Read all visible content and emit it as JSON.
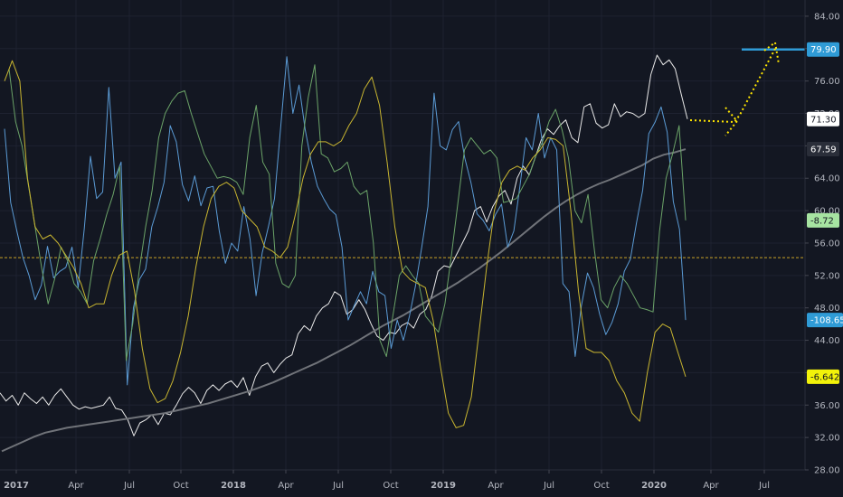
{
  "chart_data": {
    "type": "line",
    "title": "",
    "xlabel": "",
    "ylabel": "",
    "ylim": [
      28,
      86
    ],
    "grid": true,
    "background": "#131722",
    "x_ticks": [
      "2017",
      "Apr",
      "Jul",
      "Oct",
      "2018",
      "Apr",
      "Jul",
      "Oct",
      "2019",
      "Apr",
      "Jul",
      "Oct",
      "2020",
      "Apr",
      "Jul"
    ],
    "x_tick_years": [
      "2017",
      "2018",
      "2019",
      "2020"
    ],
    "y_ticks": [
      "28.00",
      "32.00",
      "36.00",
      "40.00",
      "44.00",
      "48.00",
      "52.00",
      "56.00",
      "60.00",
      "64.00",
      "68.00",
      "72.00",
      "76.00",
      "80.00",
      "84.00"
    ],
    "reference_line": {
      "value": 54.2,
      "color": "#c9a227"
    },
    "series": [
      {
        "color": "#e8e8e8",
        "values": [
          37.5,
          36.5,
          37.2,
          36.0,
          37.5,
          36.8,
          36.2,
          37.0,
          36.0,
          37.2,
          38.0,
          37.0,
          36.0,
          35.5,
          35.8,
          35.6,
          35.8,
          36.0,
          37.0,
          35.6,
          35.4,
          34.2,
          32.2,
          33.8,
          34.2,
          34.8,
          33.6,
          35.0,
          34.8,
          36.0,
          37.4,
          38.2,
          37.5,
          36.2,
          37.8,
          38.5,
          37.8,
          38.6,
          39.0,
          38.2,
          39.4,
          37.2,
          39.5,
          40.8,
          41.2,
          40.0,
          41.0,
          41.8,
          42.2,
          44.8,
          45.8,
          45.2,
          47.0,
          48.0,
          48.5,
          50.0,
          49.5,
          47.2,
          47.8,
          49.0,
          47.8,
          46.0,
          44.5,
          44.0,
          45.0,
          44.8,
          45.8,
          46.2,
          45.5,
          47.2,
          47.8,
          49.5,
          52.5,
          53.2,
          53.0,
          54.5,
          56.0,
          57.5,
          60.0,
          60.5,
          58.6,
          60.5,
          61.8,
          62.5,
          60.8,
          64.0,
          65.5,
          64.4,
          66.6,
          68.8,
          70.1,
          69.4,
          70.5,
          71.2,
          69.0,
          68.4,
          72.8,
          73.2,
          70.8,
          70.2,
          70.6,
          73.2,
          71.6,
          72.2,
          72.0,
          71.5,
          72.0,
          76.8,
          79.2,
          78.0,
          78.6,
          77.5,
          74.3,
          71.3
        ]
      },
      {
        "color": "#707379",
        "values": [
          30.3,
          30.9,
          31.5,
          32.1,
          32.6,
          32.9,
          33.2,
          33.4,
          33.6,
          33.8,
          34.0,
          34.2,
          34.4,
          34.6,
          34.8,
          35.0,
          35.3,
          35.6,
          35.9,
          36.2,
          36.6,
          37.0,
          37.4,
          37.8,
          38.3,
          38.8,
          39.4,
          40.0,
          40.6,
          41.2,
          41.9,
          42.6,
          43.3,
          44.1,
          44.9,
          45.7,
          46.4,
          47.1,
          47.9,
          48.7,
          49.5,
          50.3,
          51.1,
          52.0,
          52.9,
          53.9,
          54.9,
          56.0,
          57.1,
          58.2,
          59.3,
          60.3,
          61.2,
          62.0,
          62.7,
          63.3,
          63.8,
          64.4,
          65.0,
          65.6,
          66.4,
          66.9,
          67.2,
          67.59
        ]
      },
      {
        "color": "#5b9bd5",
        "values": [
          70.1,
          61.0,
          57.5,
          54.2,
          52.0,
          49.0,
          50.8,
          55.6,
          51.7,
          52.5,
          53.0,
          55.5,
          50.5,
          57.8,
          66.7,
          61.5,
          62.3,
          75.2,
          64.0,
          66.0,
          38.5,
          48.0,
          51.5,
          52.8,
          58.0,
          60.5,
          63.5,
          70.5,
          68.5,
          63.2,
          61.2,
          64.3,
          60.6,
          62.8,
          63.0,
          57.5,
          53.5,
          56.0,
          55.0,
          60.5,
          56.5,
          49.5,
          54.8,
          58.0,
          61.5,
          70.3,
          79.0,
          72.0,
          75.5,
          70.0,
          66.0,
          63.0,
          61.5,
          60.2,
          59.5,
          55.5,
          46.5,
          48.3,
          50.0,
          48.5,
          52.5,
          50.0,
          49.5,
          43.0,
          46.5,
          44.0,
          47.0,
          50.8,
          55.5,
          60.5,
          74.5,
          68.0,
          67.5,
          70.0,
          71.0,
          66.5,
          63.5,
          59.6,
          58.8,
          57.5,
          59.5,
          60.8,
          55.5,
          57.5,
          63.0,
          69.0,
          67.5,
          72.0,
          66.5,
          69.0,
          67.5,
          51.0,
          50.0,
          42.0,
          48.2,
          52.3,
          50.5,
          47.2,
          44.7,
          46.2,
          48.5,
          52.5,
          54.0,
          58.5,
          62.5,
          69.5,
          70.9,
          72.8,
          69.7,
          61.1,
          57.7,
          46.5
        ]
      },
      {
        "color": "#6ba368",
        "values": [
          77.5,
          71.0,
          68.0,
          63.0,
          58.0,
          53.0,
          48.5,
          51.5,
          55.5,
          53.8,
          51.0,
          50.0,
          48.5,
          53.8,
          56.5,
          59.5,
          62.0,
          65.5,
          41.5,
          46.0,
          52.5,
          58.0,
          62.5,
          69.0,
          72.0,
          73.5,
          74.5,
          74.8,
          72.0,
          69.5,
          67.0,
          65.5,
          64.0,
          64.2,
          64.0,
          63.5,
          62.0,
          69.0,
          73.0,
          66.0,
          64.5,
          53.5,
          51.0,
          50.5,
          52.0,
          68.0,
          74.0,
          78.0,
          67.0,
          66.5,
          64.8,
          65.2,
          66.0,
          63.0,
          62.0,
          62.5,
          56.0,
          44.0,
          42.0,
          47.0,
          52.0,
          53.2,
          52.0,
          51.0,
          47.0,
          46.0,
          45.0,
          48.5,
          54.5,
          61.0,
          67.5,
          69.0,
          68.0,
          67.0,
          67.5,
          66.5,
          61.0,
          61.2,
          61.5,
          63.0,
          64.5,
          66.8,
          68.5,
          71.0,
          72.5,
          70.0,
          66.5,
          60.0,
          58.5,
          62.0,
          55.0,
          49.0,
          48.0,
          50.5,
          52.0,
          51.0,
          49.5,
          48.0,
          47.8,
          47.5,
          57.5,
          64.0,
          67.0,
          70.5,
          58.8
        ]
      },
      {
        "color": "#c8b530",
        "values": [
          76.0,
          78.5,
          76.0,
          64.0,
          58.0,
          56.5,
          57.0,
          56.0,
          54.5,
          53.0,
          51.0,
          48.0,
          48.5,
          48.5,
          52.0,
          54.5,
          55.0,
          50.0,
          43.0,
          38.0,
          36.3,
          36.8,
          39.0,
          42.5,
          47.0,
          53.0,
          58.0,
          61.5,
          63.0,
          63.5,
          62.8,
          60.0,
          59.0,
          58.0,
          55.5,
          55.0,
          54.2,
          55.5,
          59.5,
          64.0,
          67.0,
          68.5,
          68.5,
          68.0,
          68.6,
          70.5,
          72.0,
          75.0,
          76.5,
          73.0,
          66.0,
          58.0,
          52.5,
          51.5,
          51.0,
          50.5,
          46.5,
          40.5,
          35.0,
          33.2,
          33.5,
          37.0,
          45.0,
          53.0,
          60.0,
          63.5,
          65.0,
          65.5,
          65.0,
          66.5,
          67.5,
          69.0,
          68.8,
          68.0,
          60.0,
          50.0,
          43.0,
          42.5,
          42.5,
          41.5,
          39.0,
          37.5,
          35.0,
          34.0,
          40.0,
          45.0,
          46.0,
          45.5,
          42.5,
          39.5
        ]
      }
    ],
    "price_tags": [
      {
        "label": "79.90",
        "value": 79.9,
        "bg": "#2f9bd6",
        "fg": "#ffffff"
      },
      {
        "label": "71.30",
        "value": 71.3,
        "bg": "#ffffff",
        "fg": "#131722"
      },
      {
        "label": "67.59",
        "value": 67.59,
        "bg": "#2a2e39",
        "fg": "#ffffff"
      },
      {
        "label": "-8.72",
        "value": 58.8,
        "bg": "#a6e3a1",
        "fg": "#131722"
      },
      {
        "label": "-108.65",
        "value": 46.5,
        "bg": "#2f9bd6",
        "fg": "#ffffff"
      },
      {
        "label": "-6.642",
        "value": 39.5,
        "bg": "#f2f20a",
        "fg": "#131722"
      }
    ],
    "annotations": {
      "target_line": {
        "value": 79.9,
        "color": "#2f9bd6"
      },
      "projection_color": "#ffe600"
    }
  }
}
